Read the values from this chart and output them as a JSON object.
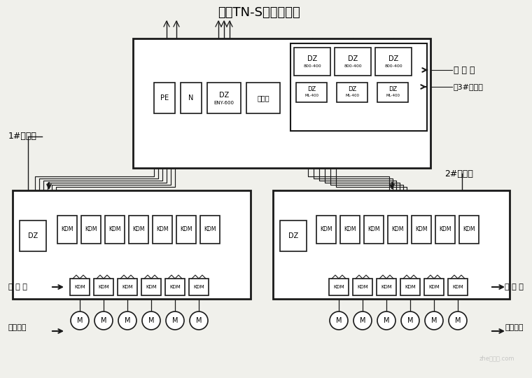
{
  "title": "大厦TN-S供电系统图",
  "bg": "#f0f0eb",
  "lc": "#1a1a1a",
  "fc": "#ffffff",
  "label_1": "1#分电箱",
  "label_2": "2#分电箱",
  "label_3": "接3#分电箱",
  "label_total": "总 电 箱",
  "label_sui": "随 机 箱",
  "label_use": "用电设备",
  "kdm_left_x": [
    82,
    116,
    150,
    184,
    218,
    252,
    286
  ],
  "kdm_right_x": [
    452,
    486,
    520,
    554,
    588,
    622,
    656
  ],
  "rbox_left_x": [
    100,
    134,
    168,
    202,
    236,
    270
  ],
  "rbox_right_x": [
    470,
    504,
    538,
    572,
    606,
    640
  ]
}
